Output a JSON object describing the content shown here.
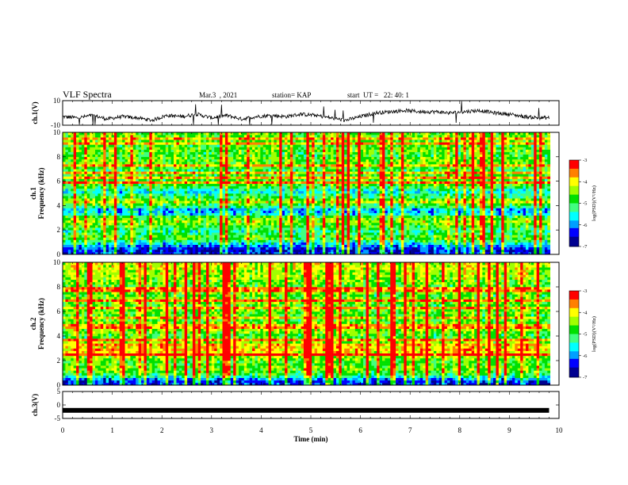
{
  "header": {
    "title": "VLF Spectra",
    "date": "Mar.3  , 2021",
    "station": "station= KAP",
    "start": "start  UT =   22: 40: 1"
  },
  "chart_data": [
    {
      "type": "line",
      "name": "ch1-voltage",
      "ylabel": "ch.1(V)",
      "ylim": [
        -10,
        10
      ],
      "yticks": [
        "10",
        "-10"
      ],
      "xlim": [
        0,
        10
      ],
      "x": [
        0,
        0.3,
        0.6,
        0.9,
        1.2,
        1.5,
        1.8,
        2.1,
        2.4,
        2.7,
        3.0,
        3.3,
        3.6,
        3.9,
        4.2,
        4.5,
        4.8,
        5.1,
        5.4,
        5.7,
        6.0,
        6.3,
        6.6,
        6.9,
        7.2,
        7.5,
        7.8,
        8.1,
        8.4,
        8.7,
        9.0,
        9.3,
        9.6,
        9.8
      ],
      "y": [
        -3,
        -4,
        -2,
        -5,
        -3,
        -4,
        -6,
        -2,
        -3,
        -1,
        -4,
        -2,
        -5,
        -3,
        -2,
        -3,
        -1,
        -2,
        -4,
        -6,
        -3,
        0,
        1,
        2,
        1,
        1,
        0,
        1,
        2,
        0,
        -1,
        -3,
        -4,
        -4
      ]
    },
    {
      "type": "heatmap",
      "name": "ch1-spectrogram",
      "ylabel": "ch.1\nFrequency (kHz)",
      "ylim": [
        0,
        10
      ],
      "yticks": [
        "0",
        "2",
        "4",
        "6",
        "8",
        "10"
      ],
      "xlim": [
        0,
        10
      ],
      "colorbar": {
        "label": "log(PSD)(V²/Hz)",
        "range": [
          -7,
          -3
        ],
        "ticks": [
          "-3",
          "-4",
          "-5",
          "-6",
          "-7"
        ]
      },
      "band_levels": [
        0.15,
        0.1,
        0.15,
        0.25,
        0.35,
        0.45,
        0.55,
        0.55,
        0.5,
        0.45,
        0.5,
        0.55,
        0.6,
        0.65,
        0.6,
        0.55,
        0.35,
        0.3,
        0.3,
        0.45,
        0.55,
        0.7,
        0.6,
        0.5,
        0.45,
        0.35,
        0.4,
        0.5,
        0.55,
        0.6,
        0.55,
        0.55,
        0.55,
        0.55,
        0.5,
        0.55,
        0.55,
        0.6,
        0.6,
        0.6,
        0.55,
        0.55,
        0.6,
        0.6,
        0.55,
        0.55,
        0.6,
        0.55,
        0.6,
        0.6
      ]
    },
    {
      "type": "heatmap",
      "name": "ch2-spectrogram",
      "ylabel": "ch.2\nFrequency (kHz)",
      "ylim": [
        0,
        10
      ],
      "yticks": [
        "0",
        "2",
        "4",
        "6",
        "8",
        "10"
      ],
      "xlim": [
        0,
        10
      ],
      "colorbar": {
        "label": "log(PSD)(V²/Hz)",
        "range": [
          -7,
          -3
        ],
        "ticks": [
          "-3",
          "-4",
          "-5",
          "-6",
          "-7"
        ]
      },
      "band_levels": [
        0.15,
        0.15,
        0.25,
        0.4,
        0.5,
        0.55,
        0.6,
        0.6,
        0.55,
        0.55,
        0.6,
        0.65,
        0.7,
        0.75,
        0.8,
        0.75,
        0.8,
        0.65,
        0.6,
        0.55,
        0.55,
        0.6,
        0.65,
        0.6,
        0.55,
        0.6,
        0.55,
        0.5,
        0.55,
        0.6,
        0.6,
        0.55,
        0.55,
        0.6,
        0.6,
        0.6,
        0.55,
        0.6,
        0.6,
        0.6,
        0.55,
        0.6,
        0.6,
        0.65,
        0.65,
        0.65,
        0.65,
        0.7,
        0.7,
        0.7
      ]
    },
    {
      "type": "line",
      "name": "ch3-voltage",
      "ylabel": "ch.3(V)",
      "ylim": [
        -5,
        5
      ],
      "yticks": [
        "5",
        "0",
        "-5"
      ],
      "xlim": [
        0,
        10
      ],
      "x": [
        0,
        9.8
      ],
      "y": [
        -2,
        -2
      ],
      "xlabel": "Time (min)",
      "xticks": [
        "0",
        "1",
        "2",
        "3",
        "4",
        "5",
        "6",
        "7",
        "8",
        "9",
        "10"
      ]
    }
  ],
  "colors": {
    "colormap": [
      "#000090",
      "#0000ff",
      "#00a0ff",
      "#00ffff",
      "#40ff80",
      "#00e000",
      "#a0ff00",
      "#ffff00",
      "#ff8000",
      "#ff0000",
      "#ffffff"
    ]
  }
}
